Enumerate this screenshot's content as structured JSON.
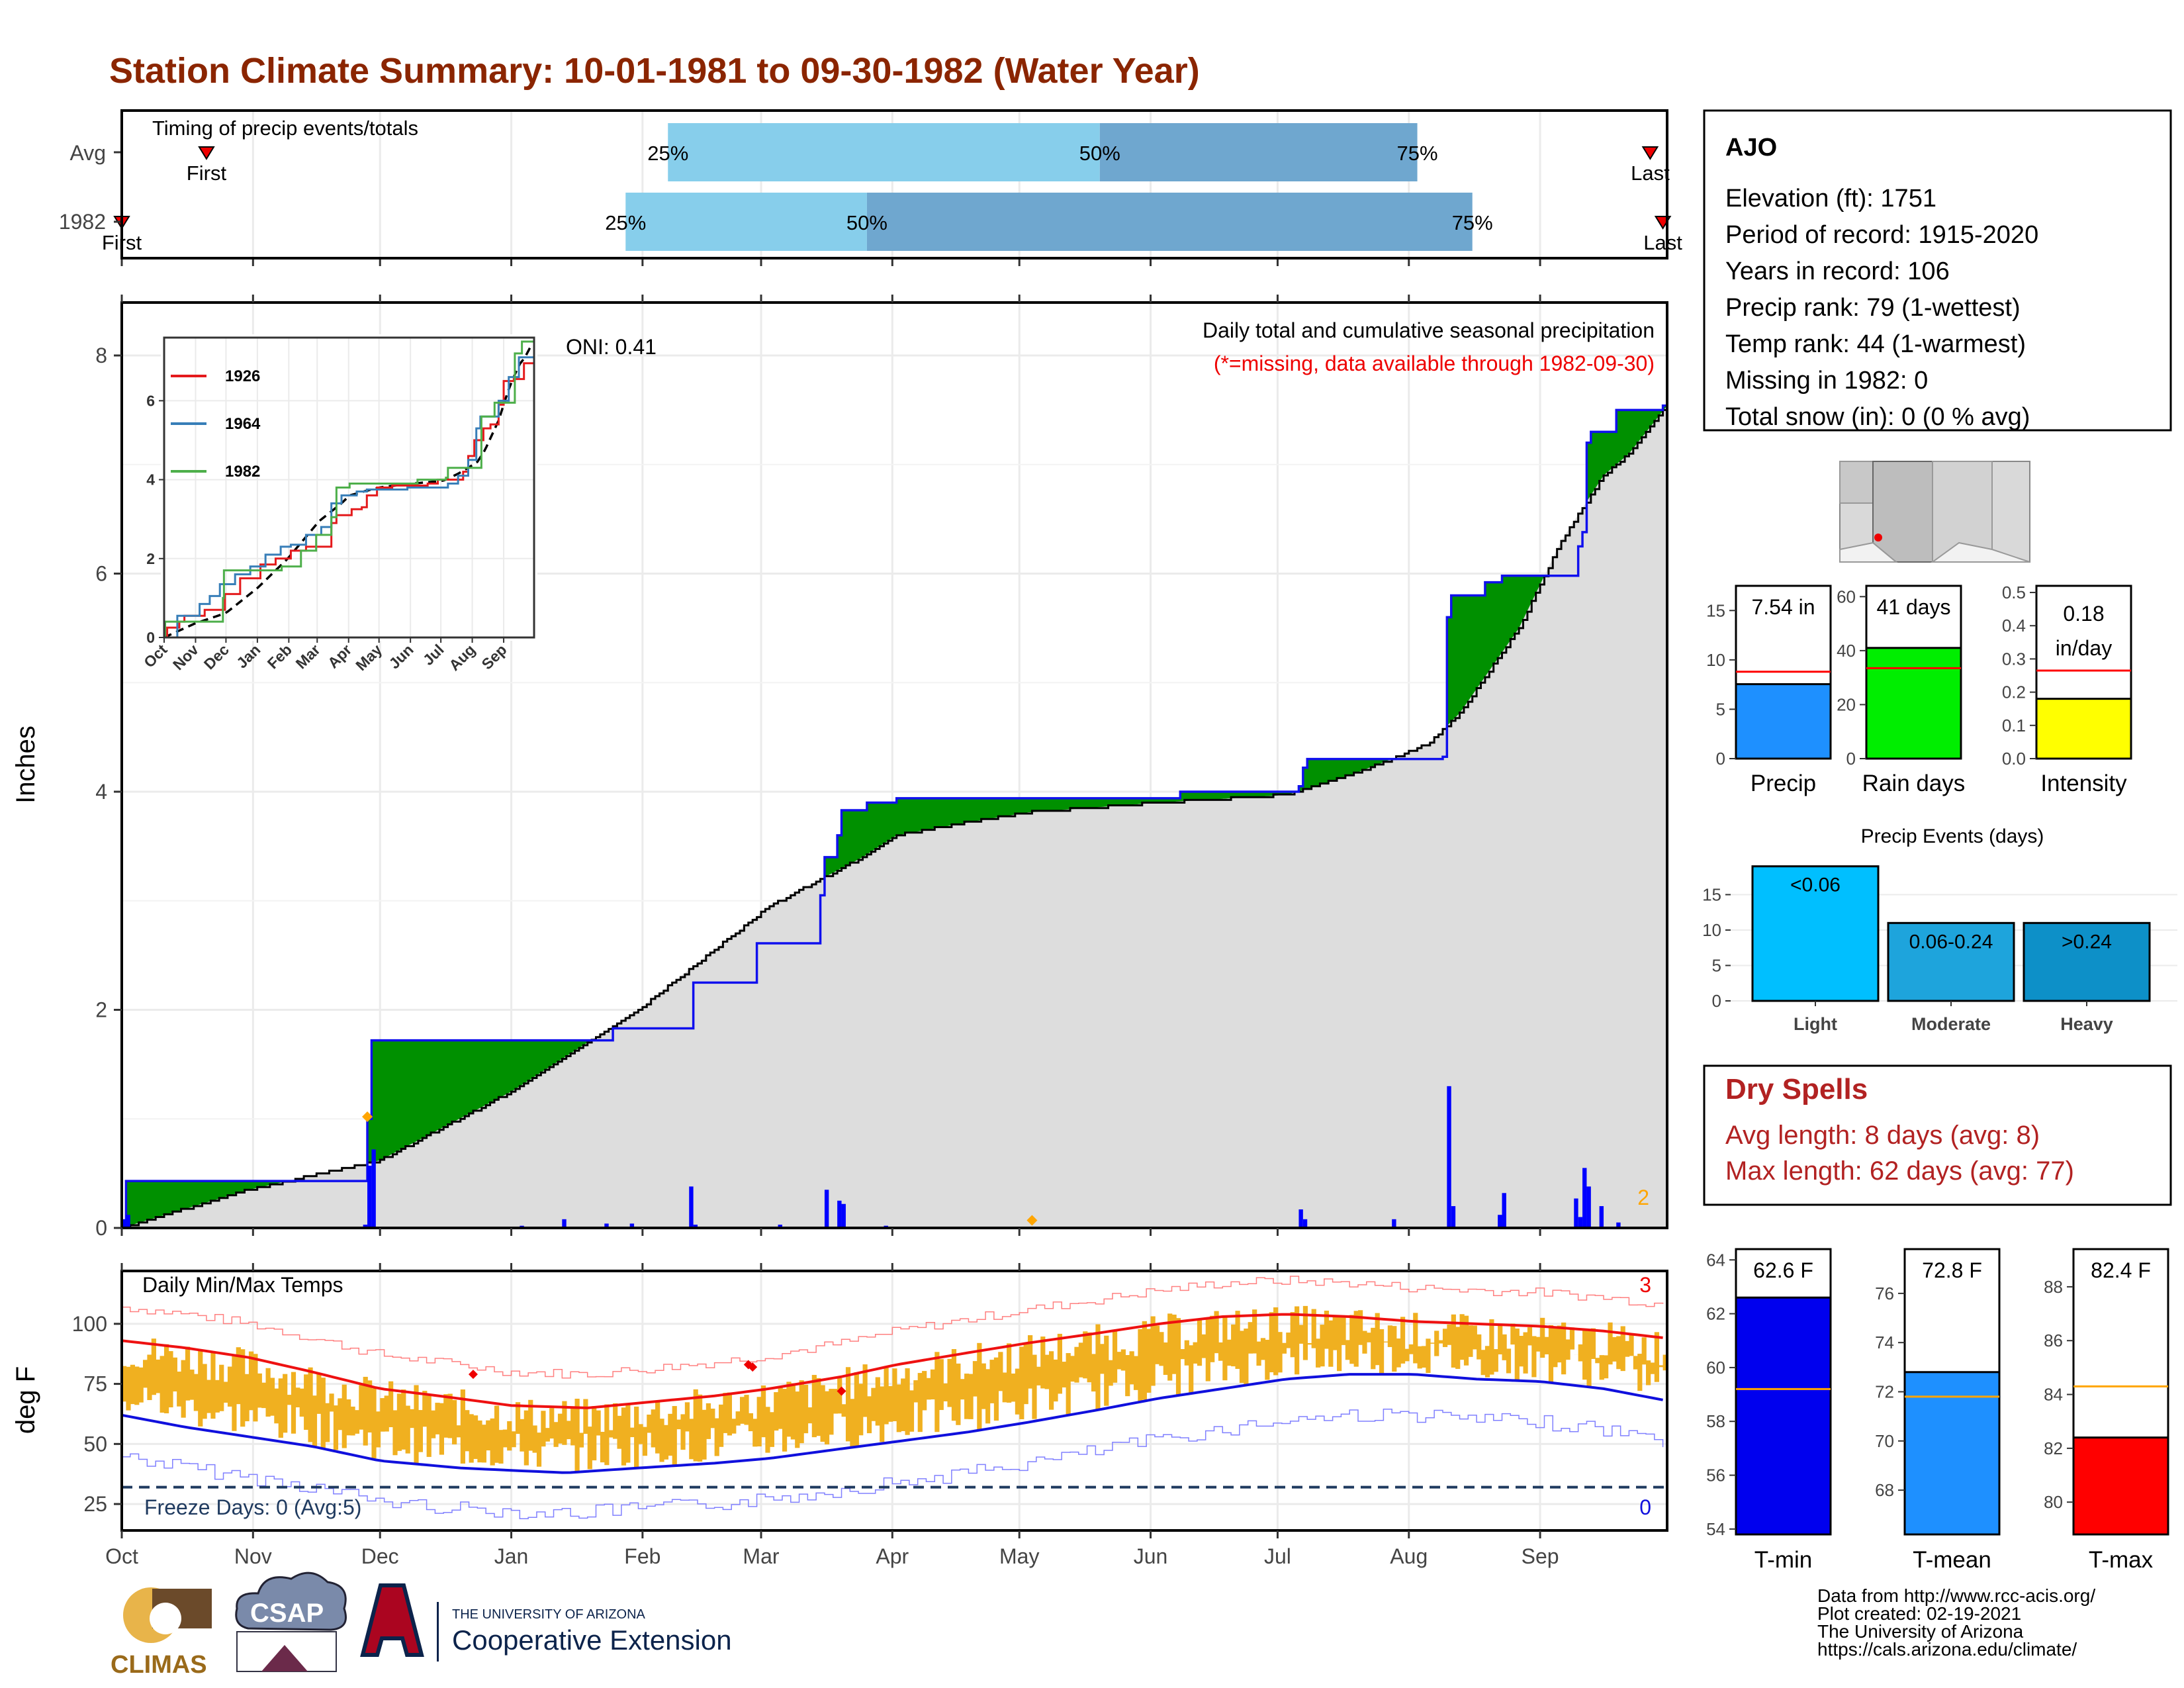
{
  "title": "Station Climate Summary: 10-01-1981 to 09-30-1982 (Water Year)",
  "colors": {
    "title": "#8b2500",
    "q1": "#87ceeb",
    "q2": "#6fa7cf",
    "marker": "#e00000",
    "deficit": "#8b5a00",
    "surplus": "#009000",
    "current_line": "#1010ee",
    "avg_fill": "#dddddd",
    "temp_bar": "#f0b020",
    "avg_max": "#ee1111",
    "avg_min": "#1010dd",
    "freeze_line": "#1f3a5f",
    "dry_spells": "#b22222",
    "snow": "#ffa500"
  },
  "months": [
    "Oct",
    "Nov",
    "Dec",
    "Jan",
    "Feb",
    "Mar",
    "Apr",
    "May",
    "Jun",
    "Jul",
    "Aug",
    "Sep"
  ],
  "timing": {
    "title": "Timing of precip events/totals",
    "rows": [
      {
        "label": "Avg",
        "first_label": "First",
        "last_label": "Last",
        "first_doy": 20,
        "last_doy": 361,
        "p25": 129,
        "p50": 231,
        "p75": 306,
        "p25_label": "25%",
        "p50_label": "50%",
        "p75_label": "75%"
      },
      {
        "label": "1982",
        "first_label": "First",
        "last_label": "Last",
        "first_doy": 0,
        "last_doy": 364,
        "p25": 119,
        "p50": 176,
        "p75": 319,
        "p25_label": "25%",
        "p50_label": "50%",
        "p75_label": "75%"
      }
    ]
  },
  "precip": {
    "ylabel": "Inches",
    "title": "Daily total and cumulative seasonal precipitation",
    "subtitle": "(*=missing, data available through 1982-09-30)",
    "oni": "ONI: 0.41",
    "snow_count": "2",
    "ylim": [
      0,
      8.2
    ],
    "yticks": [
      0,
      2,
      4,
      6,
      8
    ],
    "avg_cumulative": [
      [
        0,
        0
      ],
      [
        30,
        0.35
      ],
      [
        61,
        0.62
      ],
      [
        92,
        1.25
      ],
      [
        122,
        2.0
      ],
      [
        153,
        2.95
      ],
      [
        175,
        3.4
      ],
      [
        183,
        3.6
      ],
      [
        200,
        3.72
      ],
      [
        214,
        3.81
      ],
      [
        245,
        3.9
      ],
      [
        275,
        3.97
      ],
      [
        282,
        4.05
      ],
      [
        290,
        4.15
      ],
      [
        300,
        4.3
      ],
      [
        309,
        4.45
      ],
      [
        316,
        4.72
      ],
      [
        330,
        5.5
      ],
      [
        340,
        6.3
      ],
      [
        350,
        6.9
      ],
      [
        356,
        7.1
      ],
      [
        365,
        7.54
      ]
    ],
    "current_cumulative": [
      [
        0,
        0
      ],
      [
        1,
        0.43
      ],
      [
        57,
        0.43
      ],
      [
        58,
        1.0
      ],
      [
        59,
        1.72
      ],
      [
        94,
        1.72
      ],
      [
        106,
        1.72
      ],
      [
        116,
        1.83
      ],
      [
        125,
        1.83
      ],
      [
        135,
        2.25
      ],
      [
        149,
        2.25
      ],
      [
        150,
        2.61
      ],
      [
        164,
        2.61
      ],
      [
        165,
        3.05
      ],
      [
        166,
        3.4
      ],
      [
        169,
        3.6
      ],
      [
        170,
        3.83
      ],
      [
        176,
        3.9
      ],
      [
        183,
        3.94
      ],
      [
        234,
        3.94
      ],
      [
        250,
        4.0
      ],
      [
        278,
        4.05
      ],
      [
        279,
        4.22
      ],
      [
        280,
        4.3
      ],
      [
        301,
        4.3
      ],
      [
        312,
        4.32
      ],
      [
        313,
        5.6
      ],
      [
        314,
        5.8
      ],
      [
        322,
        5.92
      ],
      [
        326,
        5.98
      ],
      [
        343,
        5.98
      ],
      [
        344,
        6.25
      ],
      [
        345,
        6.38
      ],
      [
        346,
        7.2
      ],
      [
        347,
        7.3
      ],
      [
        352,
        7.3
      ],
      [
        353,
        7.5
      ],
      [
        364,
        7.54
      ]
    ],
    "daily": [
      [
        0,
        0.08
      ],
      [
        1,
        0.12
      ],
      [
        57,
        0.03
      ],
      [
        58,
        0.57
      ],
      [
        59,
        0.72
      ],
      [
        94,
        0.02
      ],
      [
        104,
        0.08
      ],
      [
        114,
        0.04
      ],
      [
        120,
        0.04
      ],
      [
        134,
        0.38
      ],
      [
        135,
        0.03
      ],
      [
        155,
        0.03
      ],
      [
        180,
        0.02
      ],
      [
        226,
        0.01
      ],
      [
        245,
        0.01
      ],
      [
        242,
        0.01
      ],
      [
        278,
        0.17
      ],
      [
        279,
        0.08
      ],
      [
        300,
        0.08
      ],
      [
        313,
        1.3
      ],
      [
        314,
        0.2
      ],
      [
        325,
        0.12
      ],
      [
        326,
        0.32
      ],
      [
        343,
        0.27
      ],
      [
        344,
        0.1
      ],
      [
        345,
        0.55
      ],
      [
        346,
        0.38
      ],
      [
        349,
        0.2
      ],
      [
        353,
        0.05
      ],
      [
        166,
        0.35
      ],
      [
        169,
        0.25
      ],
      [
        170,
        0.22
      ]
    ],
    "snow_days": [
      58,
      215
    ]
  },
  "inset": {
    "xticks": [
      "Oct",
      "Nov",
      "Dec",
      "Jan",
      "Feb",
      "Mar",
      "Apr",
      "May",
      "Jun",
      "Jul",
      "Aug",
      "Sep"
    ],
    "yticks": [
      0,
      2,
      4,
      6
    ],
    "ylim": [
      0,
      7.6
    ],
    "series": [
      {
        "name": "1926",
        "color": "#e41a1c",
        "points": [
          [
            0,
            0
          ],
          [
            3,
            0.25
          ],
          [
            15,
            0.4
          ],
          [
            20,
            0.55
          ],
          [
            40,
            0.7
          ],
          [
            60,
            1.1
          ],
          [
            75,
            1.5
          ],
          [
            95,
            1.85
          ],
          [
            110,
            2.0
          ],
          [
            125,
            2.2
          ],
          [
            140,
            2.3
          ],
          [
            160,
            2.3
          ],
          [
            165,
            2.9
          ],
          [
            170,
            3.1
          ],
          [
            185,
            3.25
          ],
          [
            195,
            3.3
          ],
          [
            200,
            3.6
          ],
          [
            210,
            3.8
          ],
          [
            225,
            3.85
          ],
          [
            260,
            3.9
          ],
          [
            270,
            4.0
          ],
          [
            278,
            4.0
          ],
          [
            295,
            4.2
          ],
          [
            300,
            4.6
          ],
          [
            306,
            5.0
          ],
          [
            315,
            5.3
          ],
          [
            322,
            5.4
          ],
          [
            330,
            5.9
          ],
          [
            335,
            6.5
          ],
          [
            345,
            6.55
          ],
          [
            355,
            6.95
          ],
          [
            365,
            7.5
          ]
        ]
      },
      {
        "name": "1964",
        "color": "#377eb8",
        "points": [
          [
            0,
            0
          ],
          [
            12,
            0.0
          ],
          [
            13,
            0.55
          ],
          [
            35,
            0.85
          ],
          [
            45,
            1.05
          ],
          [
            55,
            1.35
          ],
          [
            70,
            1.6
          ],
          [
            85,
            1.8
          ],
          [
            100,
            2.1
          ],
          [
            115,
            2.3
          ],
          [
            125,
            2.35
          ],
          [
            140,
            2.6
          ],
          [
            155,
            2.8
          ],
          [
            165,
            3.4
          ],
          [
            175,
            3.6
          ],
          [
            190,
            3.7
          ],
          [
            200,
            3.75
          ],
          [
            220,
            3.75
          ],
          [
            240,
            3.8
          ],
          [
            250,
            3.8
          ],
          [
            265,
            3.8
          ],
          [
            280,
            3.9
          ],
          [
            290,
            4.1
          ],
          [
            300,
            4.5
          ],
          [
            308,
            5.3
          ],
          [
            312,
            5.6
          ],
          [
            320,
            5.6
          ],
          [
            330,
            6.0
          ],
          [
            340,
            6.6
          ],
          [
            350,
            7.1
          ],
          [
            365,
            7.5
          ]
        ]
      },
      {
        "name": "1982",
        "color": "#4daf4a",
        "points": [
          [
            0,
            0
          ],
          [
            1,
            0.4
          ],
          [
            57,
            0.4
          ],
          [
            58,
            1.0
          ],
          [
            59,
            1.7
          ],
          [
            106,
            1.7
          ],
          [
            116,
            1.8
          ],
          [
            135,
            2.2
          ],
          [
            150,
            2.6
          ],
          [
            165,
            3.05
          ],
          [
            170,
            3.8
          ],
          [
            183,
            3.9
          ],
          [
            234,
            3.9
          ],
          [
            250,
            4.0
          ],
          [
            278,
            4.05
          ],
          [
            280,
            4.3
          ],
          [
            312,
            4.3
          ],
          [
            313,
            5.6
          ],
          [
            326,
            5.95
          ],
          [
            343,
            5.95
          ],
          [
            346,
            7.2
          ],
          [
            353,
            7.5
          ],
          [
            365,
            7.54
          ]
        ]
      }
    ]
  },
  "temp": {
    "ylabel": "deg F",
    "title": "Daily Min/Max Temps",
    "freeze_label": "Freeze Days: 0 (Avg:5)",
    "count_top": "3",
    "count_bottom": "0",
    "ylim": [
      14,
      122
    ],
    "yticks": [
      25,
      50,
      75,
      100
    ],
    "freeze_line": 32,
    "avg_max": [
      [
        0,
        93
      ],
      [
        15,
        90
      ],
      [
        30,
        86
      ],
      [
        45,
        80
      ],
      [
        61,
        73
      ],
      [
        75,
        70
      ],
      [
        92,
        66
      ],
      [
        110,
        65
      ],
      [
        122,
        67
      ],
      [
        140,
        70
      ],
      [
        153,
        73
      ],
      [
        170,
        78
      ],
      [
        183,
        83
      ],
      [
        200,
        88
      ],
      [
        214,
        92
      ],
      [
        230,
        96
      ],
      [
        245,
        100
      ],
      [
        260,
        103
      ],
      [
        275,
        104
      ],
      [
        290,
        103
      ],
      [
        305,
        101
      ],
      [
        320,
        100
      ],
      [
        335,
        99
      ],
      [
        350,
        97
      ],
      [
        365,
        94
      ]
    ],
    "avg_min": [
      [
        0,
        62
      ],
      [
        15,
        57
      ],
      [
        30,
        53
      ],
      [
        45,
        49
      ],
      [
        61,
        43
      ],
      [
        80,
        40
      ],
      [
        92,
        39
      ],
      [
        105,
        38
      ],
      [
        122,
        40
      ],
      [
        140,
        42
      ],
      [
        153,
        44
      ],
      [
        170,
        48
      ],
      [
        183,
        51
      ],
      [
        200,
        55
      ],
      [
        214,
        59
      ],
      [
        230,
        64
      ],
      [
        245,
        69
      ],
      [
        260,
        73
      ],
      [
        275,
        77
      ],
      [
        290,
        79
      ],
      [
        305,
        79
      ],
      [
        320,
        77
      ],
      [
        335,
        76
      ],
      [
        350,
        73
      ],
      [
        365,
        68
      ]
    ]
  },
  "station": {
    "name": "AJO",
    "lines": [
      "Elevation (ft): 1751",
      "Period of record: 1915-2020",
      "Years in record: 106",
      "Precip rank: 79 (1-wettest)",
      "Temp rank: 44 (1-warmest)",
      "Missing in 1982: 0",
      "Total snow (in): 0 (0 % avg)"
    ]
  },
  "stats": [
    {
      "label": "Precip",
      "value_label": "7.54 in",
      "value": 7.54,
      "avg": 8.8,
      "ylim": [
        0,
        17.5
      ],
      "yticks": [
        0,
        5,
        10,
        15
      ],
      "color": "#1e90ff"
    },
    {
      "label": "Rain days",
      "value_label": "41 days",
      "value": 41,
      "avg": 33.5,
      "ylim": [
        0,
        64
      ],
      "yticks": [
        0,
        20,
        40,
        60
      ],
      "color": "#00ee00"
    },
    {
      "label": "Intensity",
      "value_label_1": "0.18",
      "value_label_2": "in/day",
      "value": 0.18,
      "avg": 0.265,
      "ylim": [
        0,
        0.52
      ],
      "yticks": [
        "0.0",
        "0.1",
        "0.2",
        "0.3",
        "0.4",
        "0.5"
      ],
      "color": "#ffff00"
    }
  ],
  "events": {
    "title": "Precip Events (days)",
    "categories": [
      "Light",
      "Moderate",
      "Heavy"
    ],
    "bar_labels": [
      "<0.06",
      "0.06-0.24",
      ">0.24"
    ],
    "values": [
      19,
      11,
      11
    ],
    "colors": [
      "#00bfff",
      "#1ea4dc",
      "#0d90c8"
    ],
    "ylim": [
      0,
      20
    ],
    "yticks": [
      0,
      5,
      10,
      15
    ]
  },
  "dry_spells": {
    "title": "Dry Spells",
    "avg_line": "Avg length: 8 days (avg: 8)",
    "max_line": "Max length: 62 days (avg: 77)"
  },
  "temps_summary": [
    {
      "label": "T-min",
      "value_label": "62.6 F",
      "value": 62.6,
      "avg": 59.2,
      "ylim": [
        53.8,
        64.4
      ],
      "yticks": [
        54,
        56,
        58,
        60,
        62,
        64
      ],
      "color": "#0000ee"
    },
    {
      "label": "T-mean",
      "value_label": "72.8 F",
      "value": 72.8,
      "avg": 71.8,
      "ylim": [
        66.2,
        77.8
      ],
      "yticks": [
        68,
        70,
        72,
        74,
        76
      ],
      "color": "#1e90ff"
    },
    {
      "label": "T-max",
      "value_label": "82.4 F",
      "value": 82.4,
      "avg": 84.3,
      "ylim": [
        78.8,
        89.4
      ],
      "yticks": [
        80,
        82,
        84,
        86,
        88
      ],
      "color": "#ff0000"
    }
  ],
  "footer": {
    "logo_climas": "CLIMAS",
    "logo_csap": "CSAP",
    "ua_small": "THE UNIVERSITY OF ARIZONA",
    "ua_big": "Cooperative Extension",
    "credits": [
      "Data from http://www.rcc-acis.org/",
      "Plot created: 02-19-2021",
      "The University of Arizona",
      "https://cals.arizona.edu/climate/"
    ]
  }
}
